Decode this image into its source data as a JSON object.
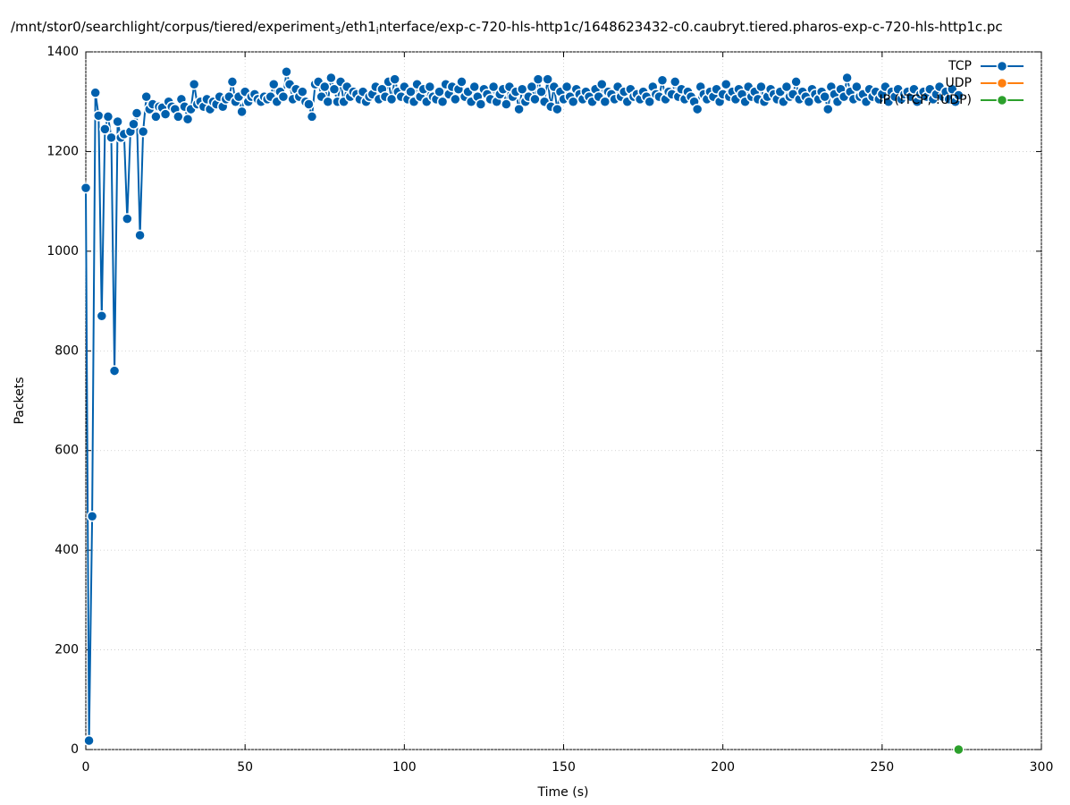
{
  "chart_data": {
    "type": "line",
    "title": [
      "/mnt/stor0/searchlight/corpus/tiered/experiment",
      "3",
      "/eth1",
      "i",
      "nterface/exp-c-720-hls-http1c/1648623432-c0.caubryt.tiered.pharos-exp-c-720-hls-http1c.pc"
    ],
    "x_label": "Time (s)",
    "y_label": "Packets",
    "xlim": [
      0,
      300
    ],
    "xticks": [
      0,
      50,
      100,
      150,
      200,
      250,
      300
    ],
    "ylim": [
      0,
      1400
    ],
    "yticks": [
      0,
      200,
      400,
      600,
      800,
      1000,
      1200,
      1400
    ],
    "grid": true,
    "legend": "top-right",
    "series": [
      {
        "name": "TCP",
        "color": "#0060ad",
        "x": [
          0,
          1,
          2,
          3,
          4,
          5,
          6,
          7,
          8,
          9,
          10,
          11,
          12,
          13,
          14,
          15,
          16,
          17,
          18,
          19,
          20,
          21,
          22,
          23,
          24,
          25,
          26,
          27,
          28,
          29,
          30,
          31,
          32,
          33,
          34,
          35,
          36,
          37,
          38,
          39,
          40,
          41,
          42,
          43,
          44,
          45,
          46,
          47,
          48,
          49,
          50,
          51,
          52,
          53,
          54,
          55,
          56,
          57,
          58,
          59,
          60,
          61,
          62,
          63,
          64,
          65,
          66,
          67,
          68,
          69,
          70,
          71,
          72,
          73,
          74,
          75,
          76,
          77,
          78,
          79,
          80,
          81,
          82,
          83,
          84,
          85,
          86,
          87,
          88,
          89,
          90,
          91,
          92,
          93,
          94,
          95,
          96,
          97,
          98,
          99,
          100,
          101,
          102,
          103,
          104,
          105,
          106,
          107,
          108,
          109,
          110,
          111,
          112,
          113,
          114,
          115,
          116,
          117,
          118,
          119,
          120,
          121,
          122,
          123,
          124,
          125,
          126,
          127,
          128,
          129,
          130,
          131,
          132,
          133,
          134,
          135,
          136,
          137,
          138,
          139,
          140,
          141,
          142,
          143,
          144,
          145,
          146,
          147,
          148,
          149,
          150,
          151,
          152,
          153,
          154,
          155,
          156,
          157,
          158,
          159,
          160,
          161,
          162,
          163,
          164,
          165,
          166,
          167,
          168,
          169,
          170,
          171,
          172,
          173,
          174,
          175,
          176,
          177,
          178,
          179,
          180,
          181,
          182,
          183,
          184,
          185,
          186,
          187,
          188,
          189,
          190,
          191,
          192,
          193,
          194,
          195,
          196,
          197,
          198,
          199,
          200,
          201,
          202,
          203,
          204,
          205,
          206,
          207,
          208,
          209,
          210,
          211,
          212,
          213,
          214,
          215,
          216,
          217,
          218,
          219,
          220,
          221,
          222,
          223,
          224,
          225,
          226,
          227,
          228,
          229,
          230,
          231,
          232,
          233,
          234,
          235,
          236,
          237,
          238,
          239,
          240,
          241,
          242,
          243,
          244,
          245,
          246,
          247,
          248,
          249,
          250,
          251,
          252,
          253,
          254,
          255,
          256,
          257,
          258,
          259,
          260,
          261,
          262,
          263,
          264,
          265,
          266,
          267,
          268,
          269,
          270,
          271,
          272,
          273,
          274
        ],
        "values": [
          1127,
          18,
          468,
          1318,
          1272,
          870,
          1245,
          1270,
          1228,
          760,
          1260,
          1228,
          1235,
          1065,
          1240,
          1255,
          1277,
          1032,
          1240,
          1310,
          1285,
          1295,
          1270,
          1290,
          1288,
          1275,
          1300,
          1290,
          1285,
          1270,
          1305,
          1290,
          1265,
          1285,
          1335,
          1295,
          1300,
          1290,
          1305,
          1285,
          1300,
          1295,
          1310,
          1290,
          1305,
          1310,
          1340,
          1300,
          1310,
          1280,
          1320,
          1300,
          1310,
          1315,
          1305,
          1300,
          1310,
          1305,
          1310,
          1335,
          1300,
          1320,
          1310,
          1360,
          1335,
          1305,
          1325,
          1310,
          1320,
          1300,
          1295,
          1270,
          1335,
          1340,
          1310,
          1330,
          1300,
          1348,
          1325,
          1300,
          1340,
          1300,
          1330,
          1310,
          1320,
          1315,
          1305,
          1320,
          1300,
          1310,
          1315,
          1330,
          1305,
          1325,
          1310,
          1340,
          1305,
          1345,
          1320,
          1310,
          1330,
          1305,
          1320,
          1300,
          1335,
          1310,
          1325,
          1300,
          1330,
          1310,
          1305,
          1320,
          1300,
          1335,
          1315,
          1330,
          1305,
          1325,
          1340,
          1310,
          1320,
          1300,
          1330,
          1310,
          1295,
          1325,
          1315,
          1305,
          1330,
          1300,
          1315,
          1325,
          1295,
          1330,
          1310,
          1320,
          1285,
          1325,
          1300,
          1310,
          1330,
          1305,
          1345,
          1320,
          1300,
          1345,
          1290,
          1330,
          1285,
          1320,
          1305,
          1330,
          1310,
          1300,
          1325,
          1315,
          1305,
          1320,
          1310,
          1300,
          1325,
          1310,
          1335,
          1300,
          1320,
          1315,
          1305,
          1330,
          1310,
          1320,
          1300,
          1325,
          1310,
          1315,
          1305,
          1320,
          1310,
          1300,
          1330,
          1315,
          1310,
          1343,
          1305,
          1320,
          1315,
          1340,
          1310,
          1325,
          1305,
          1320,
          1310,
          1300,
          1285,
          1330,
          1315,
          1305,
          1320,
          1310,
          1325,
          1300,
          1315,
          1335,
          1310,
          1320,
          1305,
          1325,
          1315,
          1300,
          1330,
          1310,
          1320,
          1305,
          1330,
          1300,
          1310,
          1325,
          1315,
          1305,
          1320,
          1300,
          1330,
          1310,
          1315,
          1340,
          1305,
          1320,
          1310,
          1300,
          1325,
          1315,
          1305,
          1320,
          1310,
          1285,
          1330,
          1315,
          1300,
          1325,
          1310,
          1348,
          1320,
          1305,
          1330,
          1310,
          1315,
          1300,
          1325,
          1310,
          1320,
          1305,
          1315,
          1330,
          1300,
          1320,
          1310,
          1325,
          1305,
          1315,
          1320,
          1310,
          1325,
          1300,
          1315,
          1320,
          1310,
          1325,
          1305,
          1315,
          1330,
          1310,
          1320,
          1305,
          1325,
          1300,
          1313
        ]
      },
      {
        "name": "UDP",
        "color": "#ff7f0e",
        "x": [],
        "values": []
      },
      {
        "name": "IP (!TCP, !UDP)",
        "color": "#2ca02c",
        "x": [
          274
        ],
        "values": [
          0
        ]
      }
    ]
  }
}
